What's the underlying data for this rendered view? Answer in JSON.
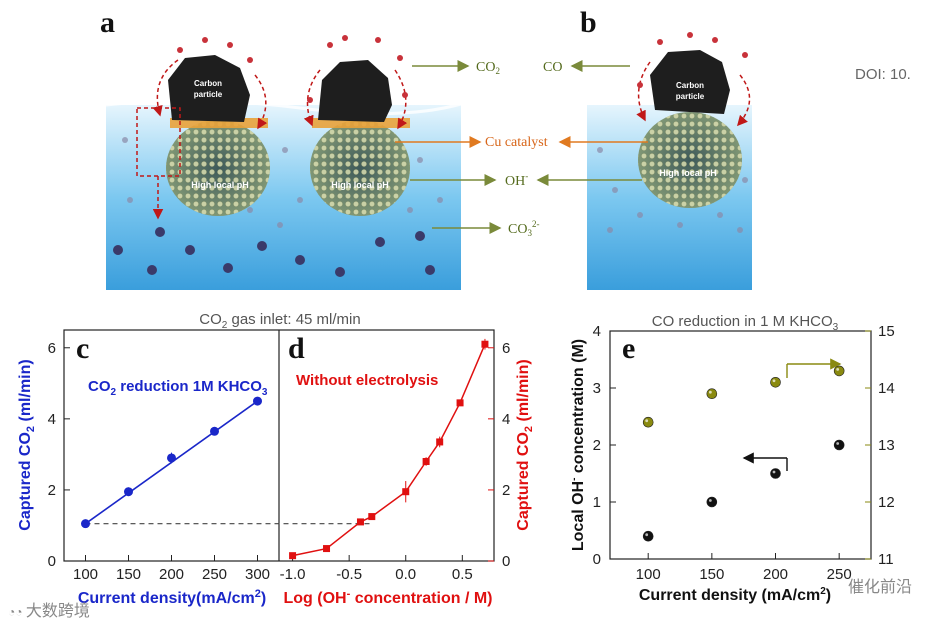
{
  "doi": "DOI: 10.",
  "illustration": {
    "panel_a": "a",
    "panel_b": "b",
    "carbon_particle": [
      "Carbon",
      "particle"
    ],
    "high_local_ph": "High local pH",
    "labels": {
      "co2": "CO",
      "co2_sub": "2",
      "co": "CO",
      "cu_catalyst": "Cu catalyst",
      "oh": "OH",
      "oh_sup": "-",
      "co3": "CO",
      "co3_sub": "3",
      "co3_sup": "2-"
    }
  },
  "watermarks": {
    "left": "大数跨境",
    "right": "催化前沿"
  },
  "chart_data": [
    {
      "panel": "c",
      "type": "line",
      "title_pre": "CO",
      "title_sub": "2",
      "title_post": " gas inlet: 45 ml/min",
      "annotation_pre": "CO",
      "annotation_sub": "2",
      "annotation_mid": " reduction 1M KHCO",
      "annotation_sub2": "3",
      "xlabel_pre": "Current density(mA/cm",
      "xlabel_sup": "2",
      "xlabel_post": ")",
      "ylabel_pre": "Captured CO",
      "ylabel_sub": "2",
      "ylabel_post": " (ml/min)",
      "x": [
        100,
        150,
        200,
        250,
        300
      ],
      "y": [
        1.05,
        1.95,
        2.9,
        3.65,
        4.5
      ],
      "yerr": [
        0.05,
        0.12,
        0.15,
        0.08,
        0.1
      ],
      "xticks": [
        "100",
        "150",
        "200",
        "250",
        "300"
      ],
      "yticks": [
        "0",
        "2",
        "4",
        "6"
      ],
      "xlim": [
        75,
        325
      ],
      "ylim": [
        0,
        6.5
      ],
      "color": "#1a27c9"
    },
    {
      "panel": "d",
      "type": "line",
      "annotation": "Without electrolysis",
      "xlabel_pre": "Log (OH",
      "xlabel_sup": "-",
      "xlabel_post": " concentration / M)",
      "ylabel_pre": "Captured CO",
      "ylabel_sub": "2",
      "ylabel_post": " (ml/min)",
      "x": [
        -1.0,
        -0.7,
        -0.4,
        -0.3,
        0.0,
        0.18,
        0.3,
        0.48,
        0.7
      ],
      "y": [
        0.15,
        0.35,
        1.1,
        1.25,
        1.95,
        2.8,
        3.35,
        4.45,
        6.1
      ],
      "yerr": [
        0.05,
        0.05,
        0.06,
        0.06,
        0.3,
        0.12,
        0.15,
        0.08,
        0.15
      ],
      "xticks": [
        "-1.0",
        "-0.5",
        "0.0",
        "0.5"
      ],
      "yticks": [
        "0",
        "2",
        "4",
        "6"
      ],
      "xlim": [
        -1.12,
        0.78
      ],
      "ylim": [
        0,
        6.5
      ],
      "color": "#e01010",
      "reference_y": 1.05
    },
    {
      "panel": "e",
      "type": "scatter",
      "title_pre": "CO reduction in 1 M KHCO",
      "title_sub": "3",
      "xlabel": "Current density (mA/cm",
      "xlabel_sup": "2",
      "xlabel_post": ")",
      "ylabel_left_pre": "Local OH",
      "ylabel_left_sup": "-",
      "ylabel_left_post": " concentration (M)",
      "x": [
        100,
        150,
        200,
        250
      ],
      "series": [
        {
          "axis": "left",
          "values": [
            0.4,
            1.0,
            1.5,
            2.0
          ],
          "color": "#111111"
        },
        {
          "axis": "right",
          "values": [
            13.4,
            13.9,
            14.1,
            14.3
          ],
          "color": "#8a8a10"
        }
      ],
      "xticks": [
        "100",
        "150",
        "200",
        "250"
      ],
      "yticks_left": [
        "0",
        "1",
        "2",
        "3",
        "4"
      ],
      "yticks_right": [
        "11",
        "12",
        "13",
        "14",
        "15"
      ],
      "xlim": [
        70,
        275
      ],
      "ylim_left": [
        0,
        4
      ],
      "ylim_right": [
        11,
        15
      ]
    }
  ]
}
